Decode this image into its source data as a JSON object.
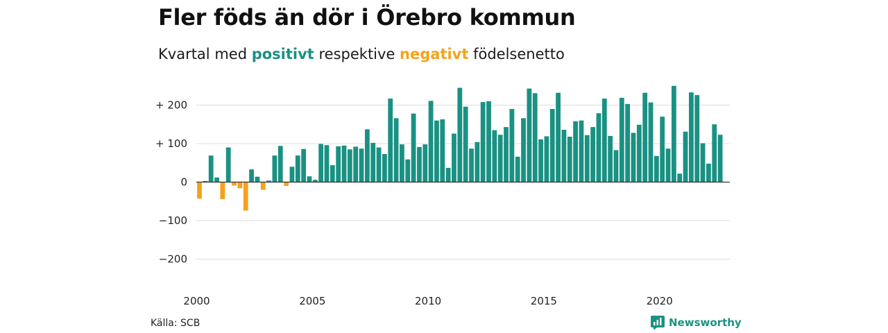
{
  "title": "Fler föds än dör i Örebro kommun",
  "subtitle": {
    "prefix": "Kvartal med ",
    "positive": "positivt",
    "middle": " respektive ",
    "negative": "negativt",
    "suffix": " födelsenetto"
  },
  "source": "Källa: SCB",
  "brand": "Newsworthy",
  "colors": {
    "positive": "#1a9183",
    "negative": "#f5a21c",
    "grid": "#dddddd",
    "zero": "#333333"
  },
  "chart_data": {
    "type": "bar",
    "xlabel": "",
    "ylabel": "",
    "ylim": [
      -250,
      260
    ],
    "grid": true,
    "y_ticks": [
      {
        "value": 200,
        "label": "+ 200"
      },
      {
        "value": 100,
        "label": "+ 100"
      },
      {
        "value": 0,
        "label": "0"
      },
      {
        "value": -100,
        "label": "−100"
      },
      {
        "value": -200,
        "label": "−200"
      }
    ],
    "x_ticks": [
      "2000",
      "2005",
      "2010",
      "2015",
      "2020"
    ],
    "start_year": 2000,
    "values": [
      -43,
      3,
      69,
      12,
      -44,
      90,
      -9,
      -16,
      -74,
      33,
      14,
      -20,
      4,
      69,
      94,
      -10,
      40,
      69,
      86,
      15,
      6,
      99,
      96,
      44,
      93,
      95,
      85,
      92,
      87,
      137,
      102,
      90,
      73,
      217,
      166,
      98,
      59,
      178,
      91,
      98,
      211,
      160,
      163,
      37,
      126,
      245,
      196,
      87,
      104,
      208,
      210,
      135,
      123,
      143,
      190,
      66,
      166,
      243,
      231,
      111,
      119,
      190,
      232,
      136,
      118,
      158,
      160,
      122,
      143,
      179,
      217,
      120,
      83,
      219,
      203,
      128,
      149,
      232,
      207,
      68,
      170,
      87,
      250,
      22,
      131,
      233,
      226,
      101,
      48,
      150,
      123
    ]
  }
}
